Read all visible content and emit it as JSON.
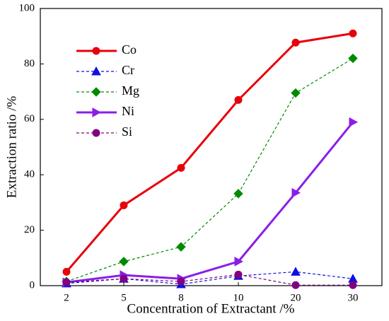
{
  "chart_data": {
    "type": "line",
    "xlabel": "Concentration of Extractant /%",
    "ylabel": "Extraction ratio /%",
    "categories": [
      "2",
      "5",
      "8",
      "10",
      "20",
      "30"
    ],
    "ylim": [
      0,
      100
    ],
    "yticks": [
      0,
      20,
      40,
      60,
      80,
      100
    ],
    "legend": "upper left",
    "series": [
      {
        "name": "Co",
        "color": "#e8000b",
        "line_style": "solid",
        "marker": "circle",
        "values": [
          5,
          29,
          42.5,
          67,
          87.7,
          91
        ]
      },
      {
        "name": "Cr",
        "color": "#1010e0",
        "line_style": "dashed",
        "marker": "triangle-up",
        "values": [
          0.8,
          2.5,
          0.5,
          3.5,
          5,
          2.5
        ]
      },
      {
        "name": "Mg",
        "color": "#008a00",
        "line_style": "dashed",
        "marker": "diamond",
        "values": [
          1.5,
          8.7,
          14,
          33.2,
          69.5,
          82
        ]
      },
      {
        "name": "Ni",
        "color": "#8a1ee6",
        "line_style": "solid",
        "marker": "triangle-right",
        "values": [
          1.2,
          3.8,
          2.5,
          8.7,
          33.5,
          59
        ]
      },
      {
        "name": "Si",
        "color": "#800080",
        "line_style": "dashed",
        "marker": "circle",
        "values": [
          1.2,
          2.5,
          1.5,
          4,
          0.2,
          0.2
        ]
      }
    ]
  }
}
